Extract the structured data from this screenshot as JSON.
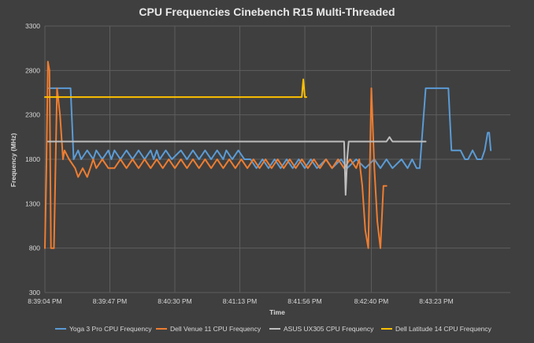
{
  "chart_data": {
    "type": "line",
    "title": "CPU Frequencies Cinebench R15 Multi-Threaded",
    "xlabel": "Time",
    "ylabel": "Frequency (MHz)",
    "xlim_seconds": [
      0,
      308
    ],
    "x_tick_labels": [
      "8:39:04 PM",
      "8:39:47 PM",
      "8:40:30 PM",
      "8:41:13 PM",
      "8:41:56 PM",
      "8:42:40 PM",
      "8:43:23 PM"
    ],
    "x_tick_values_seconds": [
      0,
      43,
      86,
      129,
      172,
      216,
      259
    ],
    "x_units_note": "",
    "ylim": [
      300,
      3300
    ],
    "y_ticks": [
      300,
      800,
      1300,
      1800,
      2300,
      2800,
      3300
    ],
    "grid": true,
    "legend_position": "bottom",
    "series": [
      {
        "name": "Yoga 3 Pro CPU Frequency",
        "color": "#5b9bd5",
        "x": [
          2,
          17,
          19,
          22,
          24,
          28,
          32,
          34,
          38,
          42,
          44,
          46,
          50,
          54,
          58,
          62,
          66,
          70,
          72,
          74,
          76,
          80,
          84,
          90,
          94,
          98,
          102,
          106,
          110,
          114,
          118,
          120,
          124,
          128,
          132,
          136,
          140,
          144,
          148,
          152,
          156,
          160,
          164,
          168,
          172,
          176,
          180,
          186,
          190,
          196,
          200,
          206,
          212,
          218,
          222,
          226,
          230,
          236,
          240,
          243,
          246,
          248,
          252,
          259,
          263,
          267,
          269,
          272,
          275,
          278,
          280,
          283,
          286,
          289,
          291,
          293,
          294,
          295
        ],
        "y": [
          2600,
          2600,
          1800,
          1900,
          1800,
          1900,
          1800,
          1900,
          1800,
          1900,
          1800,
          1900,
          1800,
          1900,
          1800,
          1900,
          1800,
          1900,
          1800,
          1900,
          1800,
          1900,
          1800,
          1900,
          1800,
          1900,
          1800,
          1900,
          1800,
          1900,
          1800,
          1900,
          1800,
          1900,
          1800,
          1800,
          1700,
          1800,
          1700,
          1800,
          1700,
          1800,
          1700,
          1800,
          1700,
          1800,
          1700,
          1800,
          1700,
          1800,
          1700,
          1800,
          1700,
          1800,
          1700,
          1800,
          1700,
          1800,
          1700,
          1800,
          1700,
          1700,
          2600,
          2600,
          2600,
          2600,
          1900,
          1900,
          1900,
          1800,
          1800,
          1900,
          1800,
          1800,
          1900,
          2100,
          2100,
          1900
        ]
      },
      {
        "name": "Dell Venue 11 CPU Frequency",
        "color": "#ed7d31",
        "x": [
          0,
          1,
          2,
          3,
          4,
          6,
          8,
          10,
          12,
          13,
          16,
          20,
          22,
          25,
          28,
          30,
          32,
          34,
          38,
          42,
          46,
          50,
          54,
          58,
          62,
          66,
          70,
          74,
          78,
          82,
          86,
          90,
          94,
          98,
          102,
          106,
          110,
          114,
          118,
          122,
          126,
          130,
          134,
          138,
          142,
          146,
          150,
          154,
          158,
          162,
          166,
          170,
          174,
          178,
          182,
          186,
          190,
          194,
          198,
          202,
          206,
          208,
          210,
          212,
          214,
          216,
          218,
          220,
          222,
          224,
          226
        ],
        "y": [
          800,
          1700,
          2900,
          2800,
          800,
          800,
          2600,
          2300,
          1800,
          1900,
          1800,
          1700,
          1600,
          1700,
          1600,
          1700,
          1800,
          1700,
          1800,
          1700,
          1700,
          1800,
          1700,
          1800,
          1700,
          1800,
          1700,
          1800,
          1700,
          1800,
          1700,
          1800,
          1700,
          1800,
          1700,
          1800,
          1700,
          1800,
          1700,
          1800,
          1700,
          1800,
          1700,
          1800,
          1700,
          1800,
          1700,
          1800,
          1700,
          1800,
          1700,
          1800,
          1700,
          1800,
          1700,
          1800,
          1700,
          1800,
          1700,
          1800,
          1700,
          1800,
          1500,
          1000,
          800,
          2600,
          1700,
          1100,
          800,
          1500,
          1500
        ]
      },
      {
        "name": "ASUS UX305 CPU Frequency",
        "color": "#bfbfbf",
        "x": [
          2,
          172,
          198,
          199,
          200,
          201,
          202,
          206,
          226,
          228,
          230,
          252
        ],
        "y": [
          2000,
          2000,
          2000,
          1400,
          1800,
          2000,
          2000,
          2000,
          2000,
          2050,
          2000,
          2000
        ]
      },
      {
        "name": "Dell Latitude 14 CPU Frequency",
        "color": "#ffc000",
        "x": [
          0,
          170,
          171,
          172,
          173
        ],
        "y": [
          2500,
          2500,
          2700,
          2500,
          2500
        ]
      }
    ]
  }
}
